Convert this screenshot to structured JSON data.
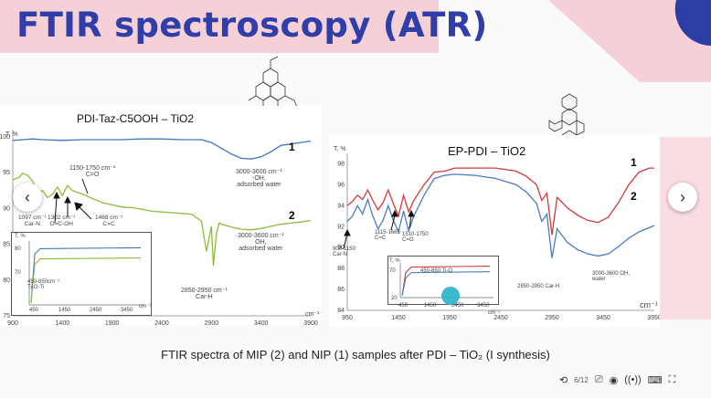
{
  "slide": {
    "title": "FTIR spectroscopy (ATR)",
    "caption": "FTIR spectra of MIP (2) and NIP (1) samples after PDI – TiO₂ (I synthesis)",
    "colors": {
      "title": "#2f3ea8",
      "pink": "#f5d0d6",
      "blue_deco": "#2c3ea6"
    }
  },
  "chart_data": [
    {
      "type": "line",
      "title": "PDI-Taz-C5OOH – TiO2",
      "ylabel": "T, %",
      "xlabel": "cm⁻¹",
      "x_ticks": [
        "900",
        "1400",
        "1900",
        "2400",
        "2900",
        "3400",
        "3900"
      ],
      "y_ticks": [
        "100",
        "95",
        "90",
        "85",
        "80",
        "75"
      ],
      "xlim": [
        900,
        3900
      ],
      "ylim": [
        75,
        101
      ],
      "series": [
        {
          "name": "1",
          "color": "#3a78c2",
          "x": [
            900,
            1000,
            1100,
            1200,
            1400,
            1600,
            1800,
            2000,
            2200,
            2400,
            2600,
            2800,
            2900,
            3000,
            3100,
            3200,
            3300,
            3400,
            3500,
            3600,
            3800,
            3900
          ],
          "y": [
            99.5,
            99.6,
            99.7,
            99.6,
            99.5,
            99.6,
            99.6,
            99.6,
            99.7,
            99.7,
            99.6,
            99.6,
            99.2,
            98.4,
            97.6,
            97.0,
            96.9,
            97.2,
            97.9,
            98.8,
            99.2,
            99.4
          ]
        },
        {
          "name": "2",
          "color": "#8bbd3a",
          "x": [
            900,
            960,
            1000,
            1050,
            1100,
            1150,
            1200,
            1250,
            1300,
            1350,
            1400,
            1450,
            1500,
            1600,
            1700,
            1800,
            1900,
            2000,
            2100,
            2200,
            2300,
            2400,
            2500,
            2600,
            2700,
            2800,
            2850,
            2900,
            2920,
            2950,
            2980,
            3000,
            3100,
            3200,
            3300,
            3400,
            3500,
            3600,
            3800,
            3900
          ],
          "y": [
            94.0,
            94.3,
            94.9,
            94.6,
            93.8,
            92.2,
            92.5,
            91.5,
            92.0,
            93.0,
            91.8,
            93.2,
            92.5,
            92.0,
            91.4,
            90.8,
            90.5,
            90.2,
            90.1,
            89.9,
            89.6,
            89.5,
            89.4,
            89.3,
            89.2,
            88.2,
            84.0,
            87.5,
            82.0,
            86.5,
            88.0,
            87.8,
            87.4,
            87.1,
            87.0,
            87.2,
            87.5,
            87.8,
            88.1,
            88.3
          ]
        }
      ],
      "series_labels": [
        "1",
        "2"
      ],
      "annotations": [
        "1150-1750 cm⁻¹\nC=O",
        "3000-3600 cm⁻¹\n-OH,\nadsorbed water",
        "1097 cm⁻¹\nCar-N",
        "1302 cm⁻¹\nO=C-OH",
        "1468 cm⁻¹\nC=C",
        "3000-3600 cm⁻¹\nOH,\nadsorbed water",
        "2850-2950 cm⁻¹\nCar-H"
      ],
      "inset": {
        "ylabel": "T, %",
        "xlabel": "cm⁻¹",
        "x_ticks": [
          "450",
          "1450",
          "2450",
          "3450"
        ],
        "y_ticks": [
          "80",
          "70"
        ],
        "annotation": "450-850cm⁻¹\nTi-O-Ti"
      }
    },
    {
      "type": "line",
      "title": "EP-PDI – TiO2",
      "ylabel": "T, %",
      "xlabel": "cm⁻¹",
      "x_ticks": [
        "950",
        "1450",
        "1950",
        "2450",
        "2950",
        "3450",
        "3950"
      ],
      "y_ticks": [
        "98",
        "96",
        "94",
        "92",
        "90",
        "88",
        "86",
        "84"
      ],
      "xlim": [
        950,
        3950
      ],
      "ylim": [
        84,
        99
      ],
      "series": [
        {
          "name": "1",
          "color": "#d23a3a",
          "x": [
            950,
            1000,
            1050,
            1100,
            1150,
            1200,
            1250,
            1300,
            1350,
            1400,
            1450,
            1500,
            1550,
            1600,
            1700,
            1800,
            1900,
            2000,
            2200,
            2400,
            2600,
            2700,
            2800,
            2850,
            2900,
            2950,
            3000,
            3100,
            3200,
            3300,
            3400,
            3500,
            3600,
            3700,
            3800,
            3900,
            3950
          ],
          "y": [
            94.0,
            94.4,
            95.0,
            94.6,
            95.5,
            94.5,
            93.6,
            94.3,
            95.5,
            94.2,
            93.0,
            95.0,
            93.4,
            94.5,
            96.0,
            97.2,
            97.3,
            97.6,
            97.6,
            97.6,
            97.3,
            96.8,
            96.0,
            94.5,
            95.2,
            91.2,
            94.8,
            93.8,
            93.1,
            92.6,
            92.4,
            92.9,
            94.3,
            96.0,
            97.2,
            97.6,
            97.6
          ]
        },
        {
          "name": "2",
          "color": "#4a7cc0",
          "x": [
            950,
            1000,
            1050,
            1100,
            1150,
            1200,
            1250,
            1300,
            1350,
            1400,
            1450,
            1500,
            1550,
            1600,
            1700,
            1800,
            1900,
            2000,
            2200,
            2400,
            2600,
            2700,
            2800,
            2850,
            2900,
            2950,
            3000,
            3100,
            3200,
            3300,
            3400,
            3500,
            3600,
            3700,
            3800,
            3900,
            3950
          ],
          "y": [
            92.5,
            93.0,
            94.0,
            93.2,
            94.6,
            93.0,
            91.8,
            92.6,
            94.0,
            92.6,
            91.5,
            93.5,
            91.6,
            93.0,
            95.0,
            96.6,
            96.9,
            97.0,
            96.9,
            96.6,
            96.0,
            95.3,
            94.2,
            92.5,
            93.2,
            89.0,
            91.8,
            90.5,
            89.8,
            89.4,
            89.2,
            89.4,
            90.1,
            90.9,
            91.5,
            91.9,
            92.1
          ]
        }
      ],
      "series_labels": [
        "1",
        "2"
      ],
      "annotations": [
        "900-1150\nCar-N",
        "1115-1665\nC=C",
        "1510-1750\nC=O",
        "2850-2950 Car-H",
        "3000-3600 OH,\nwater"
      ],
      "inset": {
        "ylabel": "T, %",
        "xlabel": "cm⁻¹",
        "x_ticks": [
          "450",
          "1450",
          "2450",
          "3450"
        ],
        "y_ticks": [
          "70",
          "20"
        ],
        "annotation": "450-850 Ti-O"
      }
    }
  ],
  "nav": {
    "prev_icon": "‹",
    "next_icon": "›"
  },
  "player": {
    "page": "6/12"
  }
}
